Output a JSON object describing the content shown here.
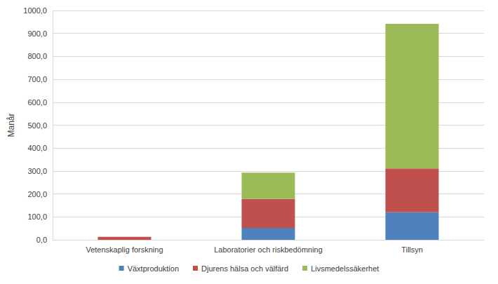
{
  "chart_data": {
    "type": "bar",
    "stacked": true,
    "y_label": "Manår",
    "categories": [
      "Vetenskaplig forskning",
      "Laboratorier och riskbedömning",
      "Tillsyn"
    ],
    "series": [
      {
        "name": "Växtproduktion",
        "color": "#4f81bd",
        "values": [
          0,
          52,
          120
        ]
      },
      {
        "name": "Djurens hälsa och välfärd",
        "color": "#c0504d",
        "values": [
          13,
          126,
          191
        ]
      },
      {
        "name": "Livsmedelssäkerhet",
        "color": "#9bbb59",
        "values": [
          0,
          115,
          631
        ]
      }
    ],
    "ylim": [
      0,
      1000
    ],
    "yticks": [
      {
        "value": 0,
        "label": "0,0"
      },
      {
        "value": 100,
        "label": "100,0"
      },
      {
        "value": 200,
        "label": "200,0"
      },
      {
        "value": 300,
        "label": "300,0"
      },
      {
        "value": 400,
        "label": "400,0"
      },
      {
        "value": 500,
        "label": "500,0"
      },
      {
        "value": 600,
        "label": "600,0"
      },
      {
        "value": 700,
        "label": "700,0"
      },
      {
        "value": 800,
        "label": "800,0"
      },
      {
        "value": 900,
        "label": "900,0"
      },
      {
        "value": 1000,
        "label": "1000,0"
      }
    ],
    "grid": true,
    "legend": "bottom"
  }
}
